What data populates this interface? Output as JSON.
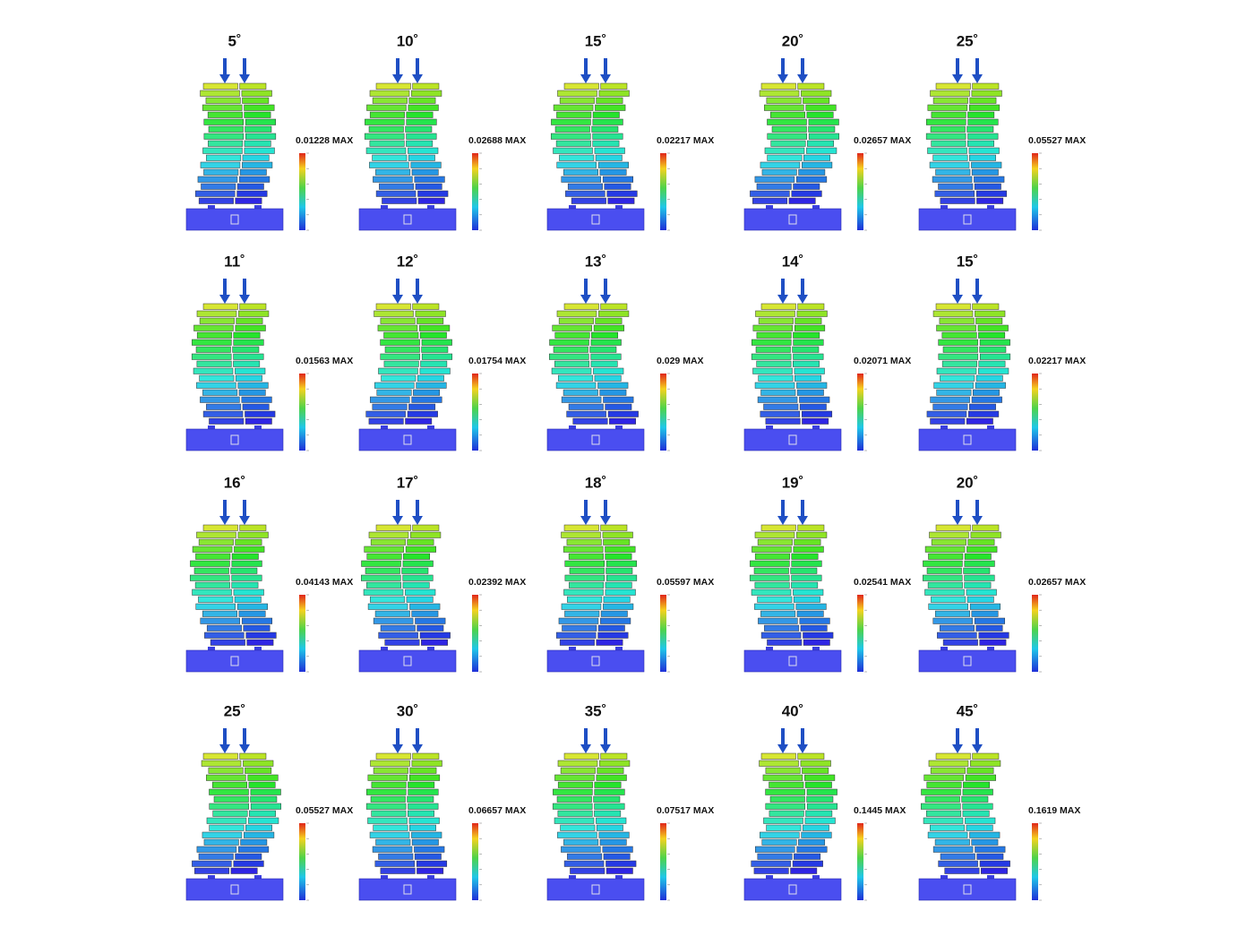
{
  "panels": [
    {
      "angle": "5˚",
      "max": "0.01228 MAX"
    },
    {
      "angle": "10˚",
      "max": "0.02688 MAX"
    },
    {
      "angle": "15˚",
      "max": "0.02217 MAX"
    },
    {
      "angle": "20˚",
      "max": "0.02657 MAX"
    },
    {
      "angle": "25˚",
      "max": "0.05527 MAX"
    },
    {
      "angle": "11˚",
      "max": "0.01563 MAX"
    },
    {
      "angle": "12˚",
      "max": "0.01754 MAX"
    },
    {
      "angle": "13˚",
      "max": "0.029 MAX"
    },
    {
      "angle": "14˚",
      "max": "0.02071 MAX"
    },
    {
      "angle": "15˚",
      "max": "0.02217 MAX"
    },
    {
      "angle": "16˚",
      "max": "0.04143 MAX"
    },
    {
      "angle": "17˚",
      "max": "0.02392 MAX"
    },
    {
      "angle": "18˚",
      "max": "0.05597 MAX"
    },
    {
      "angle": "19˚",
      "max": "0.02541 MAX"
    },
    {
      "angle": "20˚",
      "max": "0.02657 MAX"
    },
    {
      "angle": "25˚",
      "max": "0.05527 MAX"
    },
    {
      "angle": "30˚",
      "max": "0.06657 MAX"
    },
    {
      "angle": "35˚",
      "max": "0.07517 MAX"
    },
    {
      "angle": "40˚",
      "max": "0.1445 MAX"
    },
    {
      "angle": "45˚",
      "max": "0.1619 MAX"
    }
  ]
}
